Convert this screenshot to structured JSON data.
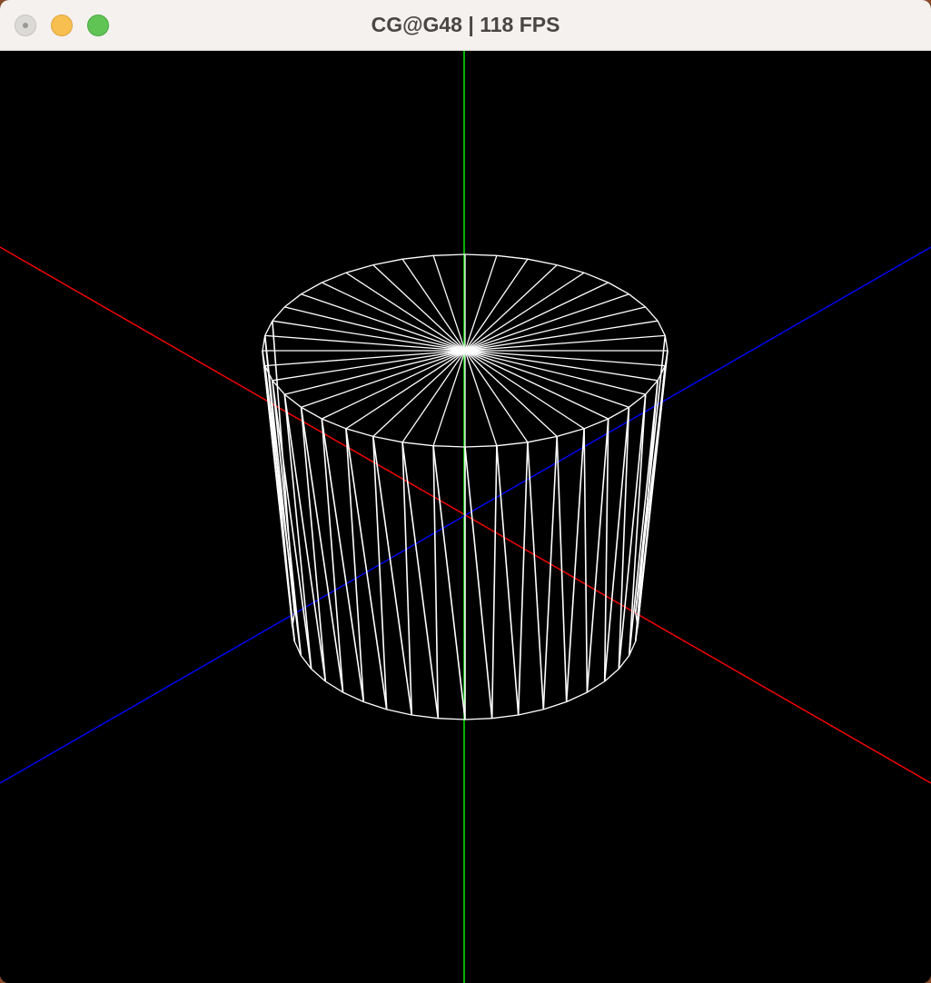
{
  "window": {
    "title": "CG@G48 | 118 FPS"
  },
  "titlebar": {
    "buttons": {
      "close_icon": "close-icon",
      "minimize_icon": "minimize-icon",
      "zoom_icon": "zoom-icon"
    }
  },
  "scene": {
    "background_color": "#000000",
    "axes": [
      {
        "name": "x-axis",
        "color": "#ff0000"
      },
      {
        "name": "y-axis",
        "color": "#00ff00"
      },
      {
        "name": "z-axis",
        "color": "#0000ff"
      }
    ],
    "model": {
      "type": "cylinder",
      "render_mode": "wireframe",
      "color": "#ffffff",
      "slices": 40
    }
  }
}
